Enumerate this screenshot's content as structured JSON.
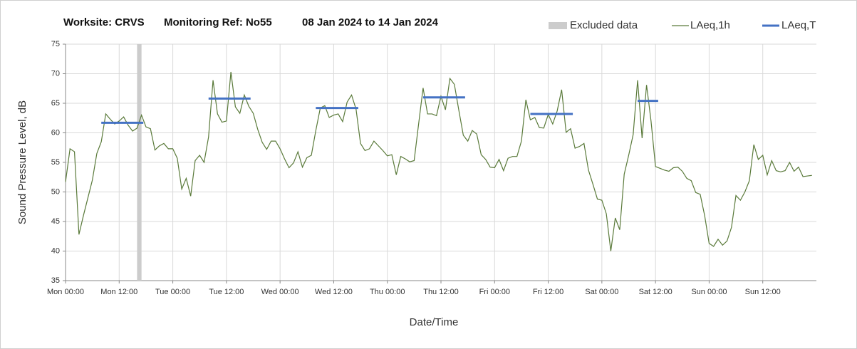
{
  "chart_data": {
    "type": "line",
    "title": [
      "Worksite: CRVS",
      "Monitoring Ref: No55",
      "08 Jan 2024 to 14 Jan 2024"
    ],
    "x_label": "Date/Time",
    "y_label": "Sound Pressure Level, dB",
    "xlim": [
      0,
      168
    ],
    "ylim": [
      35,
      75
    ],
    "yticks": [
      35,
      40,
      45,
      50,
      55,
      60,
      65,
      70,
      75
    ],
    "xticks": [
      {
        "value": 0,
        "label": "Mon 00:00"
      },
      {
        "value": 12,
        "label": "Mon 12:00"
      },
      {
        "value": 24,
        "label": "Tue 00:00"
      },
      {
        "value": 36,
        "label": "Tue 12:00"
      },
      {
        "value": 48,
        "label": "Wed 00:00"
      },
      {
        "value": 60,
        "label": "Wed 12:00"
      },
      {
        "value": 72,
        "label": "Thu 00:00"
      },
      {
        "value": 84,
        "label": "Thu 12:00"
      },
      {
        "value": 96,
        "label": "Fri 00:00"
      },
      {
        "value": 108,
        "label": "Fri 12:00"
      },
      {
        "value": 120,
        "label": "Sat 00:00"
      },
      {
        "value": 132,
        "label": "Sat 12:00"
      },
      {
        "value": 144,
        "label": "Sun 00:00"
      },
      {
        "value": 156,
        "label": "Sun 12:00"
      }
    ],
    "grid": true,
    "legend": "top-right",
    "excluded": {
      "name": "Excluded data",
      "color": "#cccccc",
      "ranges": [
        [
          16,
          17
        ]
      ]
    },
    "series": [
      {
        "name": "LAeq,1h",
        "color": "#5a7a3a",
        "x": [
          0,
          1,
          2,
          3,
          4,
          5,
          6,
          7,
          8,
          9,
          10,
          11,
          12,
          13,
          14,
          15,
          16,
          17,
          18,
          19,
          20,
          21,
          22,
          23,
          24,
          25,
          26,
          27,
          28,
          29,
          30,
          31,
          32,
          33,
          34,
          35,
          36,
          37,
          38,
          39,
          40,
          41,
          42,
          43,
          44,
          45,
          46,
          47,
          48,
          49,
          50,
          51,
          52,
          53,
          54,
          55,
          56,
          57,
          58,
          59,
          60,
          61,
          62,
          63,
          64,
          65,
          66,
          67,
          68,
          69,
          70,
          71,
          72,
          73,
          74,
          75,
          76,
          77,
          78,
          79,
          80,
          81,
          82,
          83,
          84,
          85,
          86,
          87,
          88,
          89,
          90,
          91,
          92,
          93,
          94,
          95,
          96,
          97,
          98,
          99,
          100,
          101,
          102,
          103,
          104,
          105,
          106,
          107,
          108,
          109,
          110,
          111,
          112,
          113,
          114,
          115,
          116,
          117,
          118,
          119,
          120,
          121,
          122,
          123,
          124,
          125,
          126,
          127,
          128,
          129,
          130,
          131,
          132,
          133,
          134,
          135,
          136,
          137,
          138,
          139,
          140,
          141,
          142,
          143,
          144,
          145,
          146,
          147,
          148,
          149,
          150,
          151,
          152,
          153,
          154,
          155,
          156,
          157,
          158,
          159,
          160,
          161,
          162,
          163,
          164,
          165,
          166,
          167
        ],
        "values": [
          51.7,
          57.3,
          56.8,
          42.8,
          46,
          49,
          52,
          56.5,
          58.5,
          63.2,
          62.3,
          61.5,
          62,
          62.7,
          61.3,
          60.3,
          60.8,
          63,
          61,
          60.7,
          57.1,
          57.8,
          58.2,
          57.3,
          57.3,
          55.7,
          50.5,
          52.3,
          49.3,
          55.3,
          56.2,
          55,
          59.3,
          68.9,
          63.2,
          61.8,
          62,
          70.3,
          64.4,
          63.3,
          66.4,
          64.5,
          63.3,
          60.6,
          58.4,
          57.2,
          58.6,
          58.6,
          57.3,
          55.6,
          54.1,
          54.9,
          56.8,
          54.2,
          55.8,
          56.2,
          60.4,
          64.2,
          64.6,
          62.6,
          63,
          63.2,
          61.9,
          65.2,
          66.4,
          64,
          58.2,
          57,
          57.3,
          58.6,
          57.8,
          57,
          56.1,
          56.3,
          52.9,
          56,
          55.6,
          55.1,
          55.3,
          61.5,
          67.6,
          63.2,
          63.2,
          62.9,
          66.2,
          63.9,
          69.2,
          68.2,
          63.8,
          59.6,
          58.6,
          60.4,
          59.8,
          56.3,
          55.5,
          54.2,
          54.1,
          55.5,
          53.6,
          55.7,
          56,
          56,
          58.6,
          65.6,
          62.2,
          62.6,
          60.9,
          60.8,
          63.1,
          61.5,
          63.7,
          67.3,
          60.1,
          60.7,
          57.4,
          57.7,
          58.2,
          53.7,
          51.3,
          48.8,
          48.6,
          46.3,
          40,
          45.6,
          43.6,
          53,
          56.2,
          59.7,
          68.9,
          59.1,
          68.1,
          62,
          54.3,
          54,
          53.7,
          53.5,
          54.1,
          54.2,
          53.5,
          52.3,
          51.9,
          49.9,
          49.6,
          46,
          41.3,
          40.8,
          42,
          41,
          41.7,
          44,
          49.4,
          48.6,
          50,
          51.9,
          58,
          55.5,
          56.2,
          52.9,
          55.3,
          53.6,
          53.4,
          53.6,
          55,
          53.5,
          54.2,
          52.6,
          52.7,
          52.8
        ]
      },
      {
        "name": "LAeq,T",
        "color": "#4472c4",
        "periods": [
          {
            "start": 8,
            "end": 17.4,
            "value": 61.7
          },
          {
            "start": 32,
            "end": 41.4,
            "value": 65.8
          },
          {
            "start": 56,
            "end": 65.5,
            "value": 64.2
          },
          {
            "start": 80,
            "end": 89.4,
            "value": 66
          },
          {
            "start": 104,
            "end": 113.5,
            "value": 63.2
          },
          {
            "start": 128,
            "end": 132.6,
            "value": 65.4
          }
        ]
      }
    ]
  }
}
